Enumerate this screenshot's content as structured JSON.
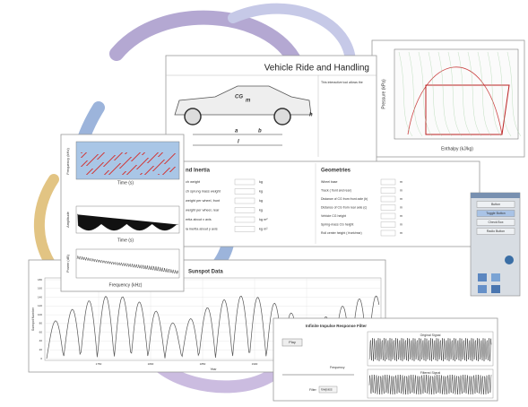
{
  "vehicle": {
    "title": "Vehicle Ride and Handling",
    "description": "This interactive tool allows the",
    "labels": [
      "CG",
      "m",
      "h",
      "a",
      "b",
      "l"
    ]
  },
  "inertia": {
    "title": "nd Inertia",
    "rows": [
      [
        "ch weight",
        "kg"
      ],
      [
        "ch sprung mass weight",
        "kg"
      ],
      [
        "weight per wheel, front",
        "kg"
      ],
      [
        "weight per wheel, rear",
        "kg"
      ],
      [
        "ertia about x axis",
        "kg m²"
      ],
      [
        "ia inertia about y axis",
        "kg m²"
      ]
    ]
  },
  "geometries": {
    "title": "Geometries",
    "rows": [
      [
        "Wheel base",
        "m"
      ],
      [
        "Track ( front and rear)",
        "m"
      ],
      [
        "Distance of CG from front axle (b)",
        "m"
      ],
      [
        "Distance of CG from rear axle (c)",
        "m"
      ],
      [
        "Vehicle CG height",
        "m"
      ],
      [
        "Spring-mass CG height",
        "m"
      ],
      [
        "Roll center height ( front/rear)",
        "m"
      ]
    ]
  },
  "signals": {
    "time_label": "Time (s)",
    "freq_label": "Frequency (kHz)",
    "amplitude_label": "Amplitude",
    "power_label": "Power (dB)"
  },
  "ph_chart": {
    "x_label": "Enthalpy (kJ/kg)",
    "y_label": "Pressure (kPa)"
  },
  "sunspot": {
    "title": "Sunspot Data",
    "x_label": "Year",
    "y_label": "Sunspot Number",
    "x_ticks": [
      "1750",
      "1800",
      "1850",
      "1900",
      "1950"
    ],
    "y_ticks": [
      "0",
      "20",
      "40",
      "60",
      "80",
      "100",
      "120",
      "140",
      "160",
      "180"
    ]
  },
  "filter": {
    "title": "Infinite Impulse Response Filter",
    "play": "Play",
    "original": "Original Signal",
    "filtered": "Filtered Signal",
    "frequency": "Frequency",
    "filter_label": "Filter",
    "filter_choice": "lowpass"
  },
  "palette": {
    "items": [
      "Button",
      "Toggle Button",
      "Check Box",
      "Radio Button"
    ]
  }
}
